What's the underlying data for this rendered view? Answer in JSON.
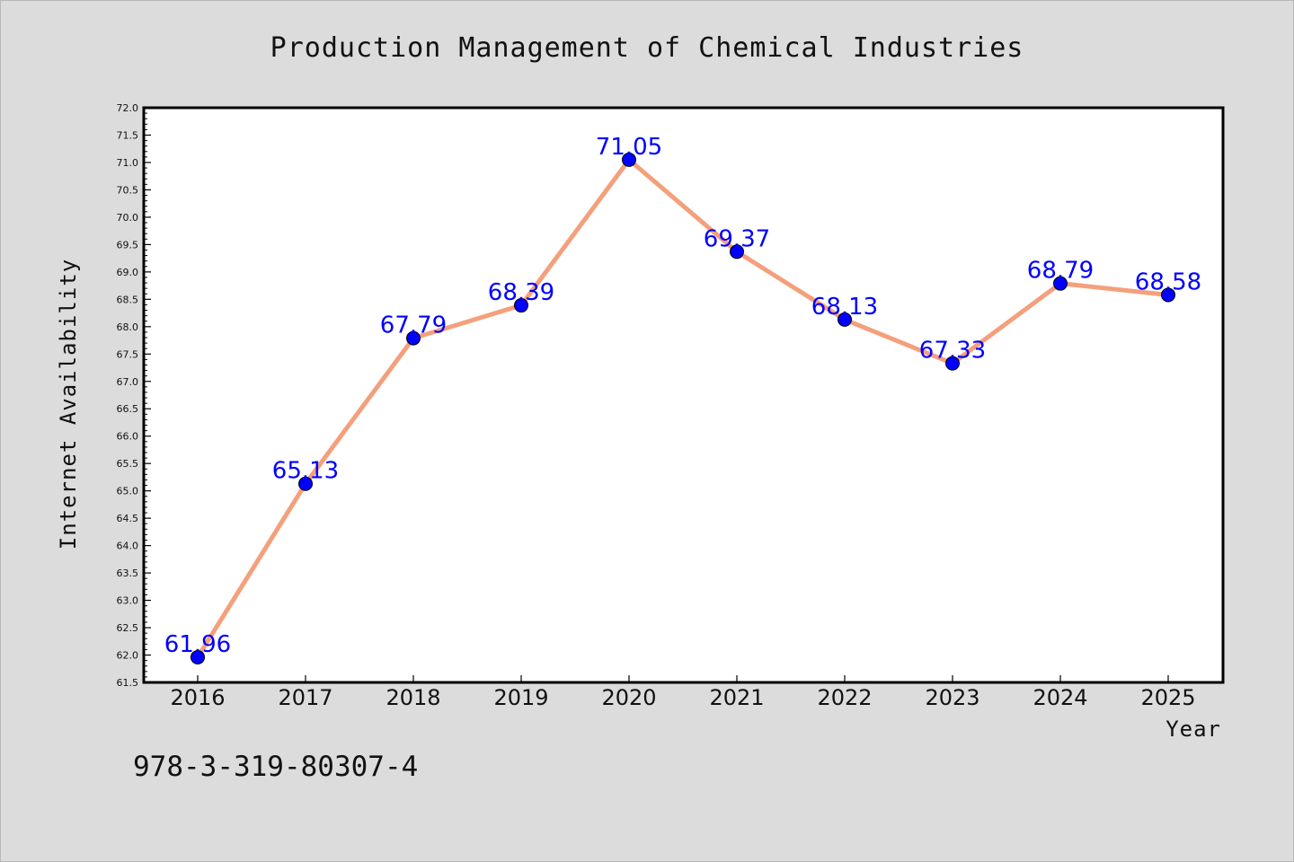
{
  "chart_data": {
    "type": "line",
    "title": "Production Management of Chemical Industries",
    "xlabel": "Year",
    "ylabel": "Internet Availability",
    "categories": [
      "2016",
      "2017",
      "2018",
      "2019",
      "2020",
      "2021",
      "2022",
      "2023",
      "2024",
      "2025"
    ],
    "series": [
      {
        "values": [
          61.96,
          65.13,
          67.79,
          68.39,
          71.05,
          69.37,
          68.13,
          67.33,
          68.79,
          68.58
        ],
        "data_labels": [
          "61.96",
          "65.13",
          "67.79",
          "68.39",
          "71.05",
          "69.37",
          "68.13",
          "67.33",
          "68.79",
          "68.58"
        ],
        "line_color": "#f4a07c",
        "marker_color": "#0000ff"
      }
    ],
    "ylim": [
      61.5,
      72.0
    ],
    "yticks": [
      "61.5",
      "62.0",
      "62.5",
      "63.0",
      "63.5",
      "64.0",
      "64.5",
      "65.0",
      "65.5",
      "66.0",
      "66.5",
      "67.0",
      "67.5",
      "68.0",
      "68.5",
      "69.0",
      "69.5",
      "70.0",
      "70.5",
      "71.0",
      "71.5",
      "72.0"
    ],
    "grid": false,
    "legend": "none",
    "label_color": "#0000ff",
    "background": "#dcdcdc",
    "plot_background": "#ffffff"
  },
  "footer": {
    "isbn": "978-3-319-80307-4"
  }
}
